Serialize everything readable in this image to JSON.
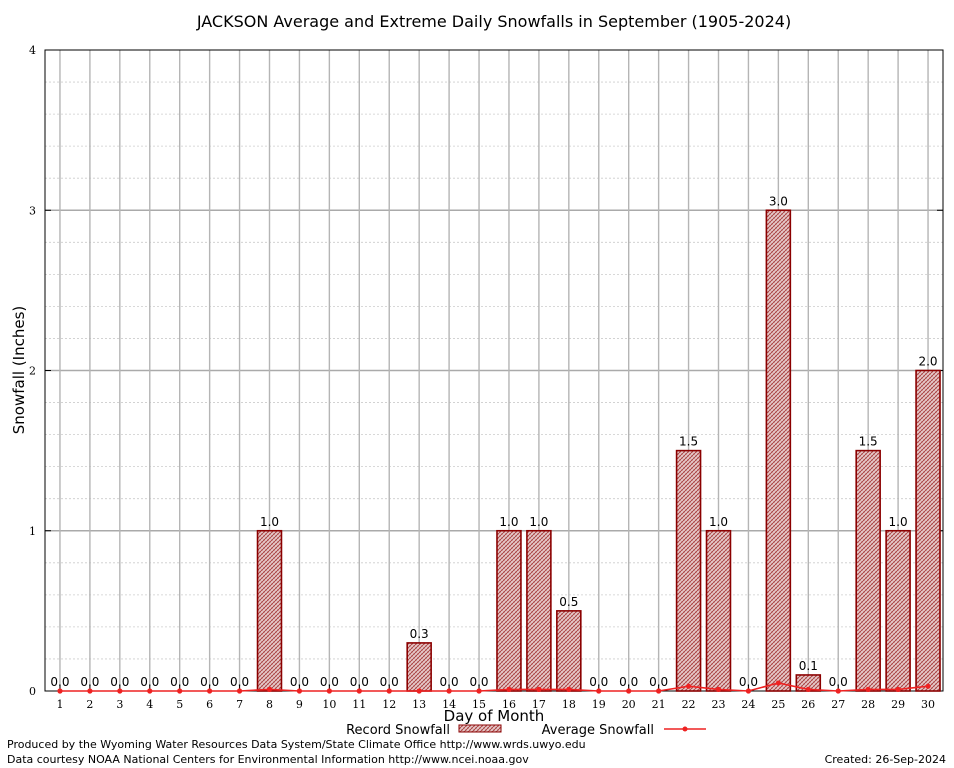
{
  "chart_data": {
    "type": "bar",
    "title": "JACKSON Average and Extreme Daily Snowfalls in September (1905-2024)",
    "xlabel": "Day of Month",
    "ylabel": "Snowfall (Inches)",
    "ylim": [
      0,
      4
    ],
    "yticks": [
      "0",
      "1",
      "2",
      "3",
      "4"
    ],
    "grid": true,
    "legend_position": "bottom",
    "categories": [
      "1",
      "2",
      "3",
      "4",
      "5",
      "6",
      "7",
      "8",
      "9",
      "10",
      "11",
      "12",
      "13",
      "14",
      "15",
      "16",
      "17",
      "18",
      "19",
      "20",
      "21",
      "22",
      "23",
      "24",
      "25",
      "26",
      "27",
      "28",
      "29",
      "30"
    ],
    "series": [
      {
        "name": "Record Snowfall",
        "type": "bar",
        "values": [
          0.0,
          0.0,
          0.0,
          0.0,
          0.0,
          0.0,
          0.0,
          1.0,
          0.0,
          0.0,
          0.0,
          0.0,
          0.3,
          0.0,
          0.0,
          1.0,
          1.0,
          0.5,
          0.0,
          0.0,
          0.0,
          1.5,
          1.0,
          0.0,
          3.0,
          0.1,
          0.0,
          1.5,
          1.0,
          2.0
        ],
        "labels": [
          "0.0",
          "0.0",
          "0.0",
          "0.0",
          "0.0",
          "0.0",
          "0.0",
          "1.0",
          "0.0",
          "0.0",
          "0.0",
          "0.0",
          "0.3",
          "0.0",
          "0.0",
          "1.0",
          "1.0",
          "0.5",
          "0.0",
          "0.0",
          "0.0",
          "1.5",
          "1.0",
          "0.0",
          "3.0",
          "0.1",
          "0.0",
          "1.5",
          "1.0",
          "2.0"
        ]
      },
      {
        "name": "Average Snowfall",
        "type": "line",
        "values": [
          0,
          0,
          0,
          0,
          0,
          0,
          0,
          0.01,
          0,
          0,
          0,
          0,
          0,
          0,
          0,
          0.01,
          0.01,
          0.01,
          0,
          0,
          0,
          0.03,
          0.01,
          0,
          0.05,
          0.01,
          0,
          0.01,
          0.01,
          0.03
        ]
      }
    ],
    "colors": {
      "bar_stroke": "#8b0000",
      "bar_fill": "#c8a0a0",
      "avg_line": "#ee2222",
      "grid": "#bbbbbb"
    }
  },
  "footer": {
    "produced_by": "Produced by the Wyoming Water Resources Data System/State Climate Office http://www.wrds.uwyo.edu",
    "courtesy": "Data courtesy NOAA National Centers for Environmental Information http://www.ncei.noaa.gov",
    "created": "Created:  26-Sep-2024"
  }
}
